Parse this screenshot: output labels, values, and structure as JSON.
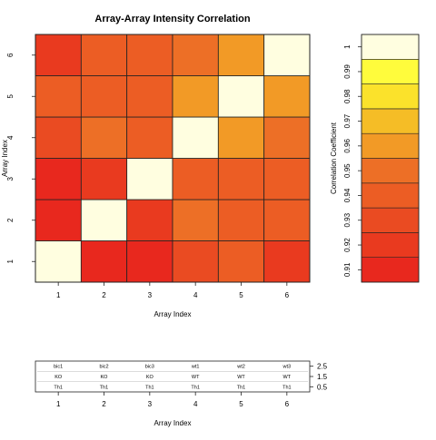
{
  "chart_data": [
    {
      "type": "heatmap",
      "title": "Array-Array Intensity Correlation",
      "xlabel": "Array Index",
      "ylabel": "Array Index",
      "x_ticks": [
        "1",
        "2",
        "3",
        "4",
        "5",
        "6"
      ],
      "y_ticks": [
        "1",
        "2",
        "3",
        "4",
        "5",
        "6"
      ],
      "matrix": [
        [
          1.0,
          0.91,
          0.912,
          0.928,
          0.935,
          0.92
        ],
        [
          0.91,
          1.0,
          0.915,
          0.945,
          0.94,
          0.942
        ],
        [
          0.912,
          0.915,
          1.0,
          0.935,
          0.935,
          0.935
        ],
        [
          0.928,
          0.945,
          0.935,
          1.0,
          0.955,
          0.95
        ],
        [
          0.935,
          0.94,
          0.935,
          0.955,
          1.0,
          0.955
        ],
        [
          0.92,
          0.942,
          0.935,
          0.95,
          0.955,
          1.0
        ]
      ]
    },
    {
      "type": "heatmap",
      "ylabel": "Correlation Coefficient",
      "scale_ticks": [
        "0.91",
        "0.92",
        "0.93",
        "0.94",
        "0.95",
        "0.96",
        "0.97",
        "0.98",
        "0.99",
        "1"
      ],
      "scale_range": [
        0.905,
        1.005
      ],
      "bins": [
        {
          "from": 0.905,
          "to": 0.915,
          "color": "#e8281e"
        },
        {
          "from": 0.915,
          "to": 0.925,
          "color": "#e93a1f"
        },
        {
          "from": 0.925,
          "to": 0.935,
          "color": "#ea4b22"
        },
        {
          "from": 0.935,
          "to": 0.945,
          "color": "#ec5d24"
        },
        {
          "from": 0.945,
          "to": 0.955,
          "color": "#ed6f26"
        },
        {
          "from": 0.955,
          "to": 0.965,
          "color": "#f29a26"
        },
        {
          "from": 0.965,
          "to": 0.975,
          "color": "#f5bd26"
        },
        {
          "from": 0.975,
          "to": 0.985,
          "color": "#fbe22b"
        },
        {
          "from": 0.985,
          "to": 0.995,
          "color": "#fffc3c"
        },
        {
          "from": 0.995,
          "to": 1.005,
          "color": "#fffee0"
        }
      ]
    },
    {
      "type": "table",
      "xlabel": "Array Index",
      "x_ticks": [
        "1",
        "2",
        "3",
        "4",
        "5",
        "6"
      ],
      "y_ticks": [
        "0.5",
        "1.5",
        "2.5"
      ],
      "rows": [
        [
          "bic1",
          "bic2",
          "bic3",
          "wt1",
          "wt2",
          "wt3"
        ],
        [
          "KO",
          "KO",
          "KO",
          "WT",
          "WT",
          "WT"
        ],
        [
          "Th1",
          "Th1",
          "Th1",
          "Th1",
          "Th1",
          "Th1"
        ]
      ]
    }
  ]
}
